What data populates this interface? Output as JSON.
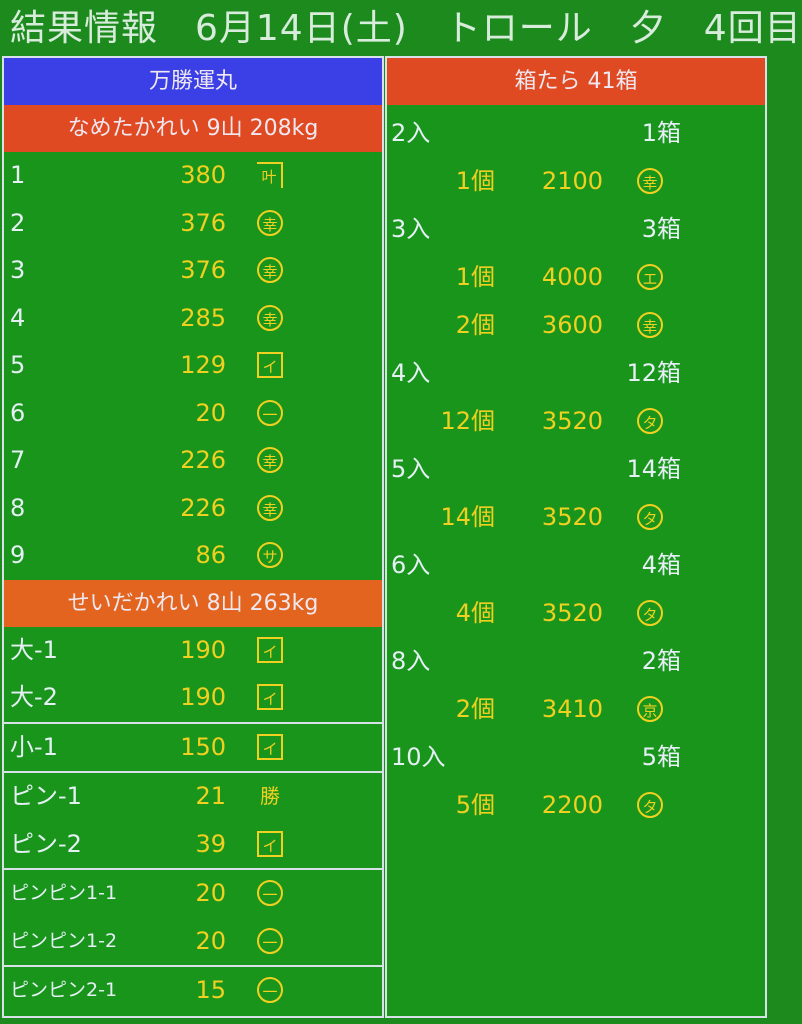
{
  "title": "結果情報　6月14日(土)　トロール　夕　4回目",
  "colors": {
    "background": "#1a951c",
    "header_blue": "#3b3fe6",
    "header_red": "#e04a22",
    "header_orange": "#e2641e",
    "value_yellow": "#f0d020",
    "label_white": "#e4f0f4"
  },
  "left": {
    "vessel": "万勝運丸",
    "sections": [
      {
        "header": "なめたかれい 9山 208kg",
        "groups": [
          [
            {
              "label": "1",
              "weight": "380",
              "mark": "叶",
              "mark_style": "corner"
            },
            {
              "label": "2",
              "weight": "376",
              "mark": "幸",
              "mark_style": "circle"
            },
            {
              "label": "3",
              "weight": "376",
              "mark": "幸",
              "mark_style": "circle"
            },
            {
              "label": "4",
              "weight": "285",
              "mark": "幸",
              "mark_style": "circle"
            },
            {
              "label": "5",
              "weight": "129",
              "mark": "イ",
              "mark_style": "box"
            },
            {
              "label": "6",
              "weight": "20",
              "mark": "一",
              "mark_style": "circle"
            },
            {
              "label": "7",
              "weight": "226",
              "mark": "幸",
              "mark_style": "circle"
            },
            {
              "label": "8",
              "weight": "226",
              "mark": "幸",
              "mark_style": "circle"
            },
            {
              "label": "9",
              "weight": "86",
              "mark": "サ",
              "mark_style": "circle"
            }
          ]
        ]
      },
      {
        "header": "せいだかれい 8山 263kg",
        "groups": [
          [
            {
              "label": "大-1",
              "weight": "190",
              "mark": "イ",
              "mark_style": "box"
            },
            {
              "label": "大-2",
              "weight": "190",
              "mark": "イ",
              "mark_style": "box"
            }
          ],
          [
            {
              "label": "小-1",
              "weight": "150",
              "mark": "イ",
              "mark_style": "box"
            }
          ],
          [
            {
              "label": "ピン-1",
              "weight": "21",
              "mark": "勝",
              "mark_style": "plain"
            },
            {
              "label": "ピン-2",
              "weight": "39",
              "mark": "イ",
              "mark_style": "box"
            }
          ],
          [
            {
              "label": "ピンピン1-1",
              "weight": "20",
              "mark": "一",
              "mark_style": "circle",
              "small": true
            },
            {
              "label": "ピンピン1-2",
              "weight": "20",
              "mark": "一",
              "mark_style": "circle",
              "small": true
            }
          ],
          [
            {
              "label": "ピンピン2-1",
              "weight": "15",
              "mark": "一",
              "mark_style": "circle",
              "small": true
            }
          ]
        ]
      }
    ]
  },
  "right": {
    "header": "箱たら 41箱",
    "sizes": [
      {
        "label": "2入",
        "count": "1箱",
        "lots": [
          {
            "qty": "1個",
            "price": "2100",
            "mark": "幸"
          }
        ]
      },
      {
        "label": "3入",
        "count": "3箱",
        "lots": [
          {
            "qty": "1個",
            "price": "4000",
            "mark": "エ"
          },
          {
            "qty": "2個",
            "price": "3600",
            "mark": "幸"
          }
        ]
      },
      {
        "label": "4入",
        "count": "12箱",
        "lots": [
          {
            "qty": "12個",
            "price": "3520",
            "mark": "タ"
          }
        ]
      },
      {
        "label": "5入",
        "count": "14箱",
        "lots": [
          {
            "qty": "14個",
            "price": "3520",
            "mark": "タ"
          }
        ]
      },
      {
        "label": "6入",
        "count": "4箱",
        "lots": [
          {
            "qty": "4個",
            "price": "3520",
            "mark": "タ"
          }
        ]
      },
      {
        "label": "8入",
        "count": "2箱",
        "lots": [
          {
            "qty": "2個",
            "price": "3410",
            "mark": "京"
          }
        ]
      },
      {
        "label": "10入",
        "count": "5箱",
        "lots": [
          {
            "qty": "5個",
            "price": "2200",
            "mark": "タ"
          }
        ]
      }
    ]
  }
}
